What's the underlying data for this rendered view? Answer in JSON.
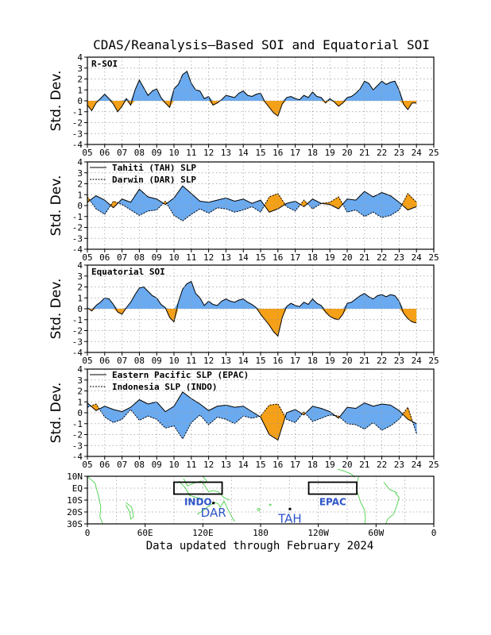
{
  "title": "CDAS/Reanalysis—Based SOI and Equatorial SOI",
  "footer": "Data updated through February 2024",
  "colors": {
    "positive": "#6aaaf0",
    "negative": "#f5a016",
    "grid": "#9a9a9a",
    "coast": "#33cc33",
    "maplabel": "#2f55c8"
  },
  "chart_data": [
    {
      "type": "area",
      "label": "R-SOI",
      "ylabel": "Std. Dev.",
      "ylim": [
        -4,
        4
      ],
      "yticks": [
        4,
        3,
        2,
        1,
        0,
        -1,
        -2,
        -3,
        -4
      ],
      "xlim": [
        2005,
        2025
      ],
      "xticks": [
        "05",
        "06",
        "07",
        "08",
        "09",
        "10",
        "11",
        "12",
        "13",
        "14",
        "15",
        "16",
        "17",
        "18",
        "19",
        "20",
        "21",
        "22",
        "23",
        "24",
        "25"
      ],
      "grid": true,
      "x": [
        2005.0,
        2005.25,
        2005.5,
        2005.75,
        2006.0,
        2006.25,
        2006.5,
        2006.75,
        2007.0,
        2007.25,
        2007.5,
        2007.75,
        2008.0,
        2008.25,
        2008.5,
        2008.75,
        2009.0,
        2009.25,
        2009.5,
        2009.75,
        2010.0,
        2010.25,
        2010.5,
        2010.75,
        2011.0,
        2011.25,
        2011.5,
        2011.75,
        2012.0,
        2012.25,
        2012.5,
        2012.75,
        2013.0,
        2013.25,
        2013.5,
        2013.75,
        2014.0,
        2014.25,
        2014.5,
        2014.75,
        2015.0,
        2015.25,
        2015.5,
        2015.75,
        2016.0,
        2016.25,
        2016.5,
        2016.75,
        2017.0,
        2017.25,
        2017.5,
        2017.75,
        2018.0,
        2018.25,
        2018.5,
        2018.75,
        2019.0,
        2019.25,
        2019.5,
        2019.75,
        2020.0,
        2020.25,
        2020.5,
        2020.75,
        2021.0,
        2021.25,
        2021.5,
        2021.75,
        2022.0,
        2022.25,
        2022.5,
        2022.75,
        2023.0,
        2023.25,
        2023.5,
        2023.75,
        2024.0
      ],
      "values": [
        -0.4,
        -0.9,
        -0.2,
        0.2,
        0.6,
        0.2,
        -0.3,
        -1.0,
        -0.5,
        0.2,
        -0.4,
        1.0,
        1.9,
        1.2,
        0.5,
        0.9,
        1.1,
        0.3,
        -0.2,
        -0.6,
        1.1,
        1.5,
        2.4,
        2.7,
        1.6,
        1.0,
        0.9,
        0.2,
        0.4,
        -0.4,
        -0.2,
        0.1,
        0.5,
        0.4,
        0.3,
        0.7,
        0.9,
        0.5,
        0.4,
        0.6,
        0.7,
        -0.1,
        -0.6,
        -1.1,
        -1.4,
        -0.3,
        0.3,
        0.4,
        0.2,
        0.1,
        0.5,
        0.3,
        0.8,
        0.4,
        0.3,
        -0.2,
        0.2,
        -0.1,
        -0.5,
        -0.2,
        0.3,
        0.4,
        0.7,
        1.1,
        1.8,
        1.6,
        1.0,
        1.4,
        1.8,
        1.5,
        1.7,
        1.8,
        1.0,
        -0.3,
        -0.8,
        -0.2,
        -0.2
      ]
    },
    {
      "type": "area",
      "legend": [
        {
          "name": "Tahiti (TAH) SLP",
          "line": "solid"
        },
        {
          "name": "Darwin (DAR) SLP",
          "line": "dashed"
        }
      ],
      "ylabel": "Std. Dev.",
      "ylim": [
        -4,
        4
      ],
      "yticks": [
        4,
        3,
        2,
        1,
        0,
        -1,
        -2,
        -3,
        -4
      ],
      "xlim": [
        2005,
        2025
      ],
      "xticks": [
        "05",
        "06",
        "07",
        "08",
        "09",
        "10",
        "11",
        "12",
        "13",
        "14",
        "15",
        "16",
        "17",
        "18",
        "19",
        "20",
        "21",
        "22",
        "23",
        "24",
        "25"
      ],
      "grid": true,
      "x": [
        2005.0,
        2005.5,
        2006.0,
        2006.5,
        2007.0,
        2007.5,
        2008.0,
        2008.5,
        2009.0,
        2009.5,
        2010.0,
        2010.5,
        2011.0,
        2011.5,
        2012.0,
        2012.5,
        2013.0,
        2013.5,
        2014.0,
        2014.5,
        2015.0,
        2015.5,
        2016.0,
        2016.5,
        2017.0,
        2017.5,
        2018.0,
        2018.5,
        2019.0,
        2019.5,
        2020.0,
        2020.5,
        2021.0,
        2021.5,
        2022.0,
        2022.5,
        2023.0,
        2023.5,
        2024.0
      ],
      "series": [
        {
          "name": "Tahiti (TAH) SLP",
          "values": [
            0.3,
            0.9,
            0.5,
            -0.2,
            0.6,
            0.3,
            1.5,
            0.8,
            0.6,
            0.1,
            0.7,
            1.8,
            1.1,
            0.4,
            0.3,
            0.5,
            0.7,
            0.4,
            0.6,
            0.2,
            0.5,
            -0.6,
            -0.3,
            0.2,
            0.4,
            -0.1,
            0.6,
            0.2,
            0.1,
            -0.3,
            0.6,
            0.5,
            1.3,
            0.8,
            1.2,
            0.9,
            0.3,
            -0.4,
            -0.1
          ]
        },
        {
          "name": "Darwin (DAR) SLP",
          "values": [
            0.8,
            -0.3,
            -0.8,
            0.4,
            0.1,
            -0.4,
            -0.9,
            -0.5,
            -0.4,
            0.4,
            -0.9,
            -1.4,
            -0.8,
            -0.3,
            -0.7,
            -0.2,
            -0.3,
            -0.6,
            -0.4,
            -0.1,
            -0.6,
            0.8,
            1.1,
            -0.1,
            -0.5,
            0.5,
            -0.3,
            0.2,
            0.3,
            0.8,
            -0.6,
            -0.4,
            -1.0,
            -0.6,
            -1.1,
            -0.9,
            -0.4,
            1.1,
            0.3
          ]
        }
      ]
    },
    {
      "type": "area",
      "label": "Equatorial SOI",
      "ylabel": "Std. Dev.",
      "ylim": [
        -4,
        4
      ],
      "yticks": [
        4,
        3,
        2,
        1,
        0,
        -1,
        -2,
        -3,
        -4
      ],
      "xlim": [
        2005,
        2025
      ],
      "xticks": [
        "05",
        "06",
        "07",
        "08",
        "09",
        "10",
        "11",
        "12",
        "13",
        "14",
        "15",
        "16",
        "17",
        "18",
        "19",
        "20",
        "21",
        "22",
        "23",
        "24",
        "25"
      ],
      "grid": true,
      "x": [
        2005.0,
        2005.25,
        2005.5,
        2005.75,
        2006.0,
        2006.25,
        2006.5,
        2006.75,
        2007.0,
        2007.25,
        2007.5,
        2007.75,
        2008.0,
        2008.25,
        2008.5,
        2008.75,
        2009.0,
        2009.25,
        2009.5,
        2009.75,
        2010.0,
        2010.25,
        2010.5,
        2010.75,
        2011.0,
        2011.25,
        2011.5,
        2011.75,
        2012.0,
        2012.25,
        2012.5,
        2012.75,
        2013.0,
        2013.25,
        2013.5,
        2013.75,
        2014.0,
        2014.25,
        2014.5,
        2014.75,
        2015.0,
        2015.25,
        2015.5,
        2015.75,
        2016.0,
        2016.25,
        2016.5,
        2016.75,
        2017.0,
        2017.25,
        2017.5,
        2017.75,
        2018.0,
        2018.25,
        2018.5,
        2018.75,
        2019.0,
        2019.25,
        2019.5,
        2019.75,
        2020.0,
        2020.25,
        2020.5,
        2020.75,
        2021.0,
        2021.25,
        2021.5,
        2021.75,
        2022.0,
        2022.25,
        2022.5,
        2022.75,
        2023.0,
        2023.25,
        2023.5,
        2023.75,
        2024.0
      ],
      "values": [
        0.1,
        -0.2,
        0.3,
        0.6,
        1.0,
        0.9,
        0.4,
        -0.3,
        -0.5,
        0.1,
        0.6,
        1.3,
        1.9,
        2.0,
        1.6,
        1.2,
        1.0,
        0.4,
        0.1,
        -0.8,
        -1.2,
        0.6,
        1.8,
        2.3,
        2.5,
        1.4,
        1.0,
        0.3,
        0.7,
        0.4,
        0.3,
        0.7,
        0.9,
        0.7,
        0.6,
        0.8,
        0.9,
        0.6,
        0.4,
        0.1,
        -0.5,
        -1.0,
        -1.5,
        -2.1,
        -2.5,
        -0.8,
        0.2,
        0.5,
        0.3,
        0.2,
        0.6,
        0.4,
        0.9,
        0.5,
        0.3,
        -0.3,
        -0.7,
        -0.9,
        -1.0,
        -0.5,
        0.5,
        0.6,
        0.9,
        1.2,
        1.4,
        1.1,
        0.9,
        1.2,
        1.3,
        1.1,
        1.3,
        1.2,
        0.7,
        -0.4,
        -0.9,
        -1.2,
        -1.3
      ]
    },
    {
      "type": "area",
      "legend": [
        {
          "name": "Eastern Pacific SLP (EPAC)",
          "line": "solid"
        },
        {
          "name": "Indonesia SLP (INDO)",
          "line": "dashed"
        }
      ],
      "ylabel": "Std. Dev.",
      "ylim": [
        -4,
        4
      ],
      "yticks": [
        4,
        3,
        2,
        1,
        0,
        -1,
        -2,
        -3,
        -4
      ],
      "xlim": [
        2005,
        2025
      ],
      "xticks": [
        "05",
        "06",
        "07",
        "08",
        "09",
        "10",
        "11",
        "12",
        "13",
        "14",
        "15",
        "16",
        "17",
        "18",
        "19",
        "20",
        "21",
        "22",
        "23",
        "24",
        "25"
      ],
      "grid": true,
      "x": [
        2005.0,
        2005.5,
        2006.0,
        2006.5,
        2007.0,
        2007.5,
        2008.0,
        2008.5,
        2009.0,
        2009.5,
        2010.0,
        2010.5,
        2011.0,
        2011.5,
        2012.0,
        2012.5,
        2013.0,
        2013.5,
        2014.0,
        2014.5,
        2015.0,
        2015.5,
        2016.0,
        2016.5,
        2017.0,
        2017.5,
        2018.0,
        2018.5,
        2019.0,
        2019.5,
        2020.0,
        2020.5,
        2021.0,
        2021.5,
        2022.0,
        2022.5,
        2023.0,
        2023.5,
        2024.0
      ],
      "series": [
        {
          "name": "Eastern Pacific SLP (EPAC)",
          "values": [
            0.9,
            0.2,
            0.6,
            0.3,
            0.1,
            0.5,
            1.2,
            0.8,
            1.0,
            0.1,
            0.6,
            1.9,
            1.3,
            0.8,
            0.2,
            0.6,
            0.7,
            0.5,
            0.6,
            0.1,
            -0.4,
            -2.0,
            -2.5,
            0.0,
            0.3,
            -0.2,
            0.6,
            0.4,
            0.1,
            -0.5,
            0.5,
            0.4,
            0.9,
            0.6,
            0.8,
            0.7,
            0.2,
            -0.6,
            -1.0
          ]
        },
        {
          "name": "Indonesia SLP (INDO)",
          "values": [
            0.5,
            0.8,
            -0.4,
            -0.9,
            -0.6,
            0.3,
            -0.7,
            -0.3,
            -0.6,
            -1.4,
            -1.2,
            -2.4,
            -0.9,
            -0.2,
            -1.1,
            -0.4,
            -0.6,
            -1.0,
            -0.3,
            -0.5,
            -0.3,
            0.7,
            0.8,
            -0.6,
            -0.9,
            0.1,
            -0.8,
            -0.5,
            -0.2,
            -0.3,
            -1.0,
            -1.1,
            -1.5,
            -0.9,
            -1.6,
            -1.2,
            -0.6,
            0.5,
            -1.9
          ]
        }
      ]
    },
    {
      "type": "map",
      "ylim_labels": [
        "10N",
        "EQ",
        "10S",
        "20S",
        "30S"
      ],
      "xticks": [
        "0",
        "60E",
        "120E",
        "180",
        "120W",
        "60W",
        "0"
      ],
      "regions": [
        {
          "name": "INDO",
          "lon": [
            90,
            140
          ],
          "lat": [
            -5,
            5
          ]
        },
        {
          "name": "EPAC",
          "lon": [
            -130,
            -80
          ],
          "lat": [
            -5,
            5
          ]
        }
      ],
      "stations": [
        {
          "name": "DAR",
          "lon": 131,
          "lat": -12.5
        },
        {
          "name": "TAH",
          "lon": -149.5,
          "lat": -17.5
        }
      ]
    }
  ]
}
